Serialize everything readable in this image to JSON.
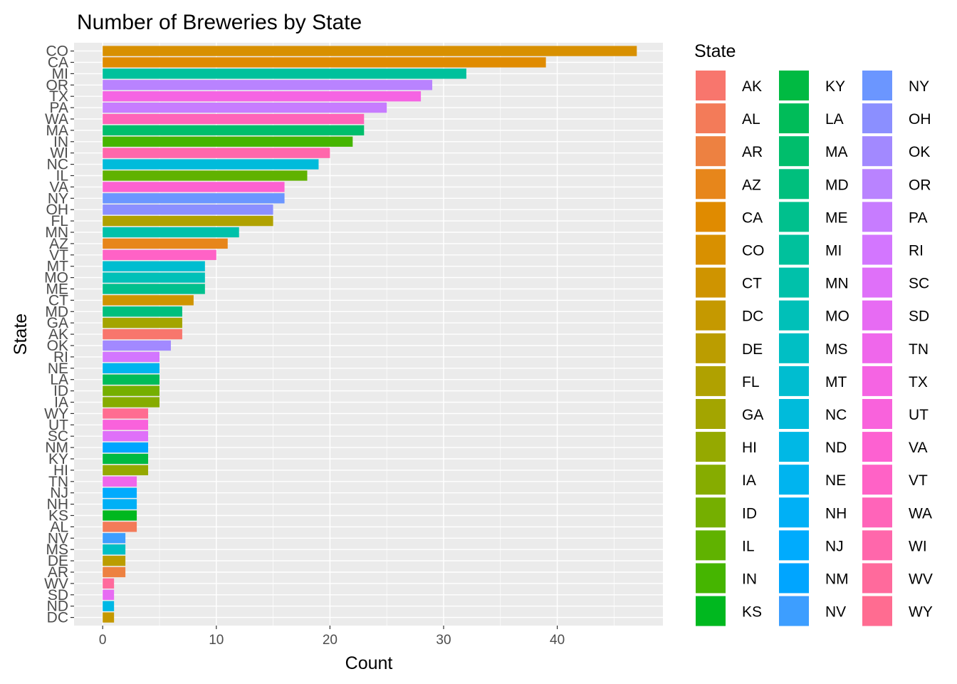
{
  "chart_data": {
    "type": "bar",
    "orientation": "horizontal",
    "title": "Number of Breweries by State",
    "xlabel": "Count",
    "ylabel": "State",
    "xlim": [
      0,
      49
    ],
    "x_ticks": [
      0,
      10,
      20,
      30,
      40
    ],
    "grid": true,
    "legend_placement": "right",
    "legend_title": "State",
    "categories": [
      "CO",
      "CA",
      "MI",
      "OR",
      "TX",
      "PA",
      "WA",
      "MA",
      "IN",
      "WI",
      "NC",
      "IL",
      "VA",
      "NY",
      "OH",
      "FL",
      "MN",
      "AZ",
      "VT",
      "MT",
      "MO",
      "ME",
      "CT",
      "MD",
      "GA",
      "AK",
      "OK",
      "RI",
      "NE",
      "LA",
      "ID",
      "IA",
      "WY",
      "UT",
      "SC",
      "NM",
      "KY",
      "HI",
      "TN",
      "NJ",
      "NH",
      "KS",
      "AL",
      "NV",
      "MS",
      "DE",
      "AR",
      "WV",
      "SD",
      "ND",
      "DC"
    ],
    "values": [
      47,
      39,
      32,
      29,
      28,
      25,
      23,
      23,
      22,
      20,
      19,
      18,
      16,
      16,
      15,
      15,
      12,
      11,
      10,
      9,
      9,
      9,
      8,
      7,
      7,
      7,
      6,
      5,
      5,
      5,
      5,
      5,
      4,
      4,
      4,
      4,
      4,
      4,
      3,
      3,
      3,
      3,
      3,
      2,
      2,
      2,
      2,
      1,
      1,
      1,
      1
    ],
    "legend_entries": [
      "AK",
      "AL",
      "AR",
      "AZ",
      "CA",
      "CO",
      "CT",
      "DC",
      "DE",
      "FL",
      "GA",
      "HI",
      "IA",
      "ID",
      "IL",
      "IN",
      "KS",
      "KY",
      "LA",
      "MA",
      "MD",
      "ME",
      "MI",
      "MN",
      "MO",
      "MS",
      "MT",
      "NC",
      "ND",
      "NE",
      "NH",
      "NJ",
      "NM",
      "NV",
      "NY",
      "OH",
      "OK",
      "OR",
      "PA",
      "RI",
      "SC",
      "SD",
      "TN",
      "TX",
      "UT",
      "VA",
      "VT",
      "WA",
      "WI",
      "WV",
      "WY"
    ],
    "colors": [
      "#F8766D",
      "#F37B59",
      "#ED8141",
      "#E7861B",
      "#E08B00",
      "#D89000",
      "#CF9400",
      "#C59900",
      "#BB9D00",
      "#B0A100",
      "#A3A500",
      "#95A900",
      "#86AC00",
      "#75AF00",
      "#60B200",
      "#45B500",
      "#00B81F",
      "#00BA42",
      "#00BC59",
      "#00BE6C",
      "#00BF7D",
      "#00C08D",
      "#00C19C",
      "#00C1AA",
      "#00C0B8",
      "#00BFC4",
      "#00BDD0",
      "#00BBDB",
      "#00B8E5",
      "#00B4EF",
      "#00B0F6",
      "#00ABFD",
      "#00A5FF",
      "#3D9EFF",
      "#6B96FF",
      "#8B8FFF",
      "#A289FF",
      "#B983FF",
      "#C77CFF",
      "#D376FF",
      "#DF70F9",
      "#E76BF3",
      "#EF67EB",
      "#F564E3",
      "#F962DC",
      "#FD61D1",
      "#FF62C6",
      "#FF64B9",
      "#FF67AB",
      "#FF6A9C",
      "#FF6C91"
    ],
    "panel_background": "#EBEBEB",
    "grid_color": "#FFFFFF"
  }
}
